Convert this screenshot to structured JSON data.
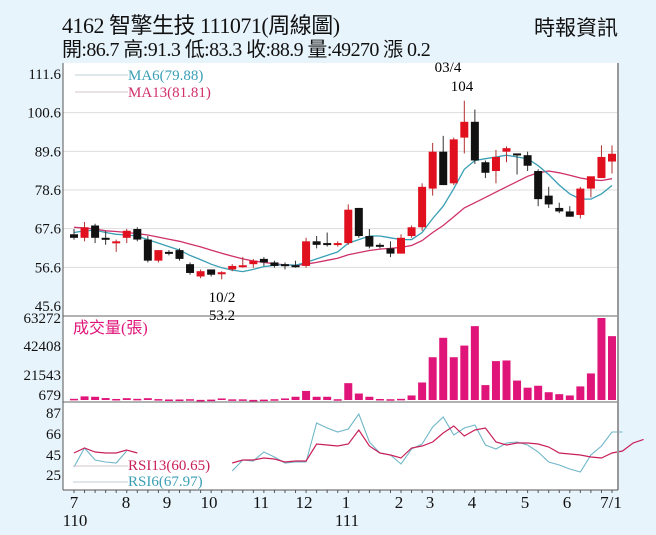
{
  "header": {
    "title": "4162  智擎生技 111071(周線圖)",
    "summary": "開:86.7 高:91.3 低:83.3 收:88.9 量:49270 漲 0.2",
    "brand": "時報資訊"
  },
  "colors": {
    "up": "#e0101e",
    "down": "#111111",
    "ma6": "#3a9fb5",
    "ma13": "#d0306a",
    "volume": "#e0157a",
    "rsi13": "#c8205a",
    "rsi6": "#6fb7c8",
    "background": "#e8f4fc",
    "grid": "#dddddd"
  },
  "chart_data": [
    {
      "type": "candlestick",
      "title": "4162 智擎生技 周線圖",
      "ylim": [
        45.6,
        111.6
      ],
      "yticks": [
        "111.6",
        "100.6",
        "89.6",
        "78.6",
        "67.6",
        "56.6",
        "45.6"
      ],
      "legend": [
        {
          "name": "MA6",
          "label": "MA6(79.88)",
          "value": 79.88,
          "color": "#3a9fb5"
        },
        {
          "name": "MA13",
          "label": "MA13(81.81)",
          "value": 81.81,
          "color": "#d0306a"
        }
      ],
      "annotations": [
        {
          "text_date": "03/4",
          "text_value": "104",
          "position": "high"
        },
        {
          "text_date": "10/2",
          "text_value": "53.2",
          "position": "low"
        }
      ],
      "candles": [
        {
          "o": 66.0,
          "h": 67.5,
          "l": 64.5,
          "c": 65.0
        },
        {
          "o": 65.0,
          "h": 69.5,
          "l": 64.0,
          "c": 68.0
        },
        {
          "o": 68.5,
          "h": 69.0,
          "l": 63.5,
          "c": 65.0
        },
        {
          "o": 65.0,
          "h": 67.0,
          "l": 63.0,
          "c": 64.5
        },
        {
          "o": 64.0,
          "h": 64.5,
          "l": 61.0,
          "c": 64.0
        },
        {
          "o": 65.0,
          "h": 67.5,
          "l": 63.5,
          "c": 67.0
        },
        {
          "o": 67.5,
          "h": 68.0,
          "l": 64.0,
          "c": 64.5
        },
        {
          "o": 64.5,
          "h": 65.5,
          "l": 58.0,
          "c": 58.5
        },
        {
          "o": 58.5,
          "h": 61.0,
          "l": 58.0,
          "c": 61.5
        },
        {
          "o": 61.0,
          "h": 61.5,
          "l": 60.0,
          "c": 60.5
        },
        {
          "o": 61.5,
          "h": 62.0,
          "l": 58.5,
          "c": 59.0
        },
        {
          "o": 57.5,
          "h": 58.0,
          "l": 54.5,
          "c": 55.0
        },
        {
          "o": 54.0,
          "h": 56.0,
          "l": 53.5,
          "c": 55.5
        },
        {
          "o": 56.0,
          "h": 56.0,
          "l": 54.0,
          "c": 54.5
        },
        {
          "o": 55.0,
          "h": 55.5,
          "l": 53.2,
          "c": 55.2
        },
        {
          "o": 56.0,
          "h": 57.5,
          "l": 55.5,
          "c": 57.0
        },
        {
          "o": 57.0,
          "h": 59.5,
          "l": 56.5,
          "c": 57.2
        },
        {
          "o": 57.5,
          "h": 59.0,
          "l": 56.5,
          "c": 58.5
        },
        {
          "o": 59.0,
          "h": 59.5,
          "l": 57.0,
          "c": 58.0
        },
        {
          "o": 58.0,
          "h": 58.5,
          "l": 56.5,
          "c": 57.0
        },
        {
          "o": 57.5,
          "h": 58.0,
          "l": 56.0,
          "c": 57.0
        },
        {
          "o": 57.2,
          "h": 58.5,
          "l": 56.5,
          "c": 57.0
        },
        {
          "o": 57.0,
          "h": 65.0,
          "l": 56.5,
          "c": 64.0
        },
        {
          "o": 64.0,
          "h": 65.5,
          "l": 62.0,
          "c": 63.0
        },
        {
          "o": 63.5,
          "h": 66.5,
          "l": 62.5,
          "c": 63.0
        },
        {
          "o": 63.0,
          "h": 64.0,
          "l": 62.5,
          "c": 63.5
        },
        {
          "o": 63.5,
          "h": 74.5,
          "l": 63.0,
          "c": 73.0
        },
        {
          "o": 73.5,
          "h": 73.5,
          "l": 65.0,
          "c": 65.5
        },
        {
          "o": 65.5,
          "h": 67.5,
          "l": 62.0,
          "c": 62.5
        },
        {
          "o": 63.0,
          "h": 63.5,
          "l": 62.0,
          "c": 62.5
        },
        {
          "o": 62.0,
          "h": 64.0,
          "l": 59.5,
          "c": 60.5
        },
        {
          "o": 60.5,
          "h": 66.0,
          "l": 60.5,
          "c": 65.0
        },
        {
          "o": 65.5,
          "h": 68.5,
          "l": 65.0,
          "c": 68.0
        },
        {
          "o": 68.0,
          "h": 80.5,
          "l": 67.0,
          "c": 79.5
        },
        {
          "o": 79.0,
          "h": 92.0,
          "l": 77.0,
          "c": 89.5
        },
        {
          "o": 89.5,
          "h": 94.0,
          "l": 80.0,
          "c": 80.0
        },
        {
          "o": 80.5,
          "h": 93.5,
          "l": 80.0,
          "c": 93.0
        },
        {
          "o": 93.5,
          "h": 104.0,
          "l": 89.0,
          "c": 98.0
        },
        {
          "o": 98.0,
          "h": 101.5,
          "l": 86.0,
          "c": 87.0
        },
        {
          "o": 86.5,
          "h": 87.0,
          "l": 82.0,
          "c": 83.5
        },
        {
          "o": 84.0,
          "h": 90.0,
          "l": 80.5,
          "c": 88.0
        },
        {
          "o": 89.5,
          "h": 91.0,
          "l": 86.5,
          "c": 90.5
        },
        {
          "o": 89.0,
          "h": 89.0,
          "l": 83.0,
          "c": 88.5
        },
        {
          "o": 88.5,
          "h": 89.5,
          "l": 84.0,
          "c": 85.5
        },
        {
          "o": 84.0,
          "h": 84.5,
          "l": 74.0,
          "c": 76.0
        },
        {
          "o": 77.0,
          "h": 79.5,
          "l": 73.5,
          "c": 74.5
        },
        {
          "o": 73.5,
          "h": 75.0,
          "l": 72.0,
          "c": 72.5
        },
        {
          "o": 72.5,
          "h": 74.0,
          "l": 71.0,
          "c": 71.0
        },
        {
          "o": 71.5,
          "h": 79.5,
          "l": 70.5,
          "c": 79.0
        },
        {
          "o": 79.0,
          "h": 82.0,
          "l": 76.5,
          "c": 82.5
        },
        {
          "o": 82.0,
          "h": 91.3,
          "l": 82.0,
          "c": 88.0
        },
        {
          "o": 86.7,
          "h": 91.3,
          "l": 83.3,
          "c": 88.9
        }
      ],
      "ma6": [
        66.5,
        67.0,
        67.2,
        66.5,
        66.0,
        65.8,
        65.5,
        64.5,
        63.5,
        62.5,
        61.5,
        60.0,
        58.8,
        57.5,
        56.5,
        55.8,
        55.4,
        56.0,
        56.8,
        57.2,
        57.3,
        57.2,
        58.0,
        59.0,
        60.0,
        61.0,
        63.5,
        64.5,
        65.5,
        65.5,
        65.0,
        64.5,
        64.5,
        66.5,
        70.5,
        74.0,
        79.0,
        84.5,
        87.0,
        87.5,
        88.0,
        88.5,
        88.0,
        87.5,
        85.5,
        83.0,
        80.0,
        77.5,
        76.0,
        76.0,
        77.5,
        79.88
      ],
      "ma13": [
        68.0,
        67.8,
        67.5,
        67.0,
        66.8,
        66.5,
        66.2,
        65.8,
        65.2,
        64.6,
        64.0,
        63.2,
        62.4,
        61.5,
        60.6,
        59.8,
        59.0,
        58.4,
        58.0,
        57.6,
        57.3,
        57.2,
        57.5,
        58.0,
        58.6,
        59.2,
        60.2,
        60.8,
        61.4,
        61.8,
        62.0,
        62.3,
        62.8,
        64.2,
        66.5,
        68.5,
        71.0,
        73.5,
        75.0,
        76.5,
        78.0,
        79.5,
        81.0,
        82.5,
        83.5,
        84.0,
        83.5,
        82.8,
        82.0,
        81.5,
        81.3,
        81.81
      ]
    },
    {
      "type": "bar",
      "title": "成交量(張)",
      "yticks": [
        "63272",
        "42408",
        "21543",
        "679"
      ],
      "ylim": [
        0,
        63272
      ],
      "values": [
        900,
        2800,
        2500,
        1500,
        800,
        1400,
        900,
        1400,
        700,
        400,
        400,
        600,
        100,
        300,
        1200,
        500,
        500,
        100,
        300,
        600,
        1200,
        2500,
        7000,
        2500,
        2500,
        600,
        13000,
        5000,
        2500,
        800,
        600,
        900,
        3500,
        13500,
        33000,
        48000,
        33000,
        42000,
        57000,
        11500,
        30000,
        30500,
        15000,
        9500,
        11000,
        6000,
        4500,
        3500,
        10500,
        20500,
        63272,
        49270
      ]
    },
    {
      "type": "line",
      "title": "RSI",
      "yticks": [
        "87",
        "66",
        "45",
        "25"
      ],
      "ylim": [
        20,
        90
      ],
      "series": [
        {
          "name": "RSI13",
          "label": "RSI13(60.65)",
          "value": 60.65,
          "values": [
            47,
            52,
            48,
            47,
            47,
            50,
            47,
            null,
            null,
            null,
            null,
            null,
            null,
            null,
            null,
            37,
            40,
            40,
            42,
            41,
            38,
            39,
            39,
            56,
            55,
            54,
            56,
            70,
            54,
            47,
            45,
            42,
            52,
            54,
            58,
            67,
            74,
            64,
            70,
            72,
            58,
            55,
            57,
            57,
            56,
            53,
            47,
            46,
            45,
            43,
            42,
            47,
            49,
            57,
            60.65
          ]
        },
        {
          "name": "RSI6",
          "label": "RSI6(67.97)",
          "value": 67.97,
          "values": [
            33,
            52,
            40,
            38,
            37,
            49,
            null,
            null,
            null,
            null,
            null,
            null,
            null,
            null,
            null,
            29,
            40,
            39,
            48,
            43,
            37,
            38,
            38,
            77,
            72,
            68,
            71,
            86,
            58,
            47,
            45,
            36,
            51,
            56,
            73,
            83,
            65,
            72,
            75,
            55,
            51,
            57,
            58,
            55,
            48,
            38,
            35,
            31,
            28,
            45,
            54,
            68,
            67.97
          ]
        }
      ]
    }
  ],
  "x_axis": {
    "labels": [
      {
        "text": "7",
        "sub": "110"
      },
      {
        "text": "8"
      },
      {
        "text": "9"
      },
      {
        "text": "10"
      },
      {
        "text": "11"
      },
      {
        "text": "12"
      },
      {
        "text": "1",
        "sub": "111"
      },
      {
        "text": "2"
      },
      {
        "text": "3"
      },
      {
        "text": "4"
      },
      {
        "text": "5"
      },
      {
        "text": "6"
      },
      {
        "text": "7/1"
      }
    ]
  }
}
